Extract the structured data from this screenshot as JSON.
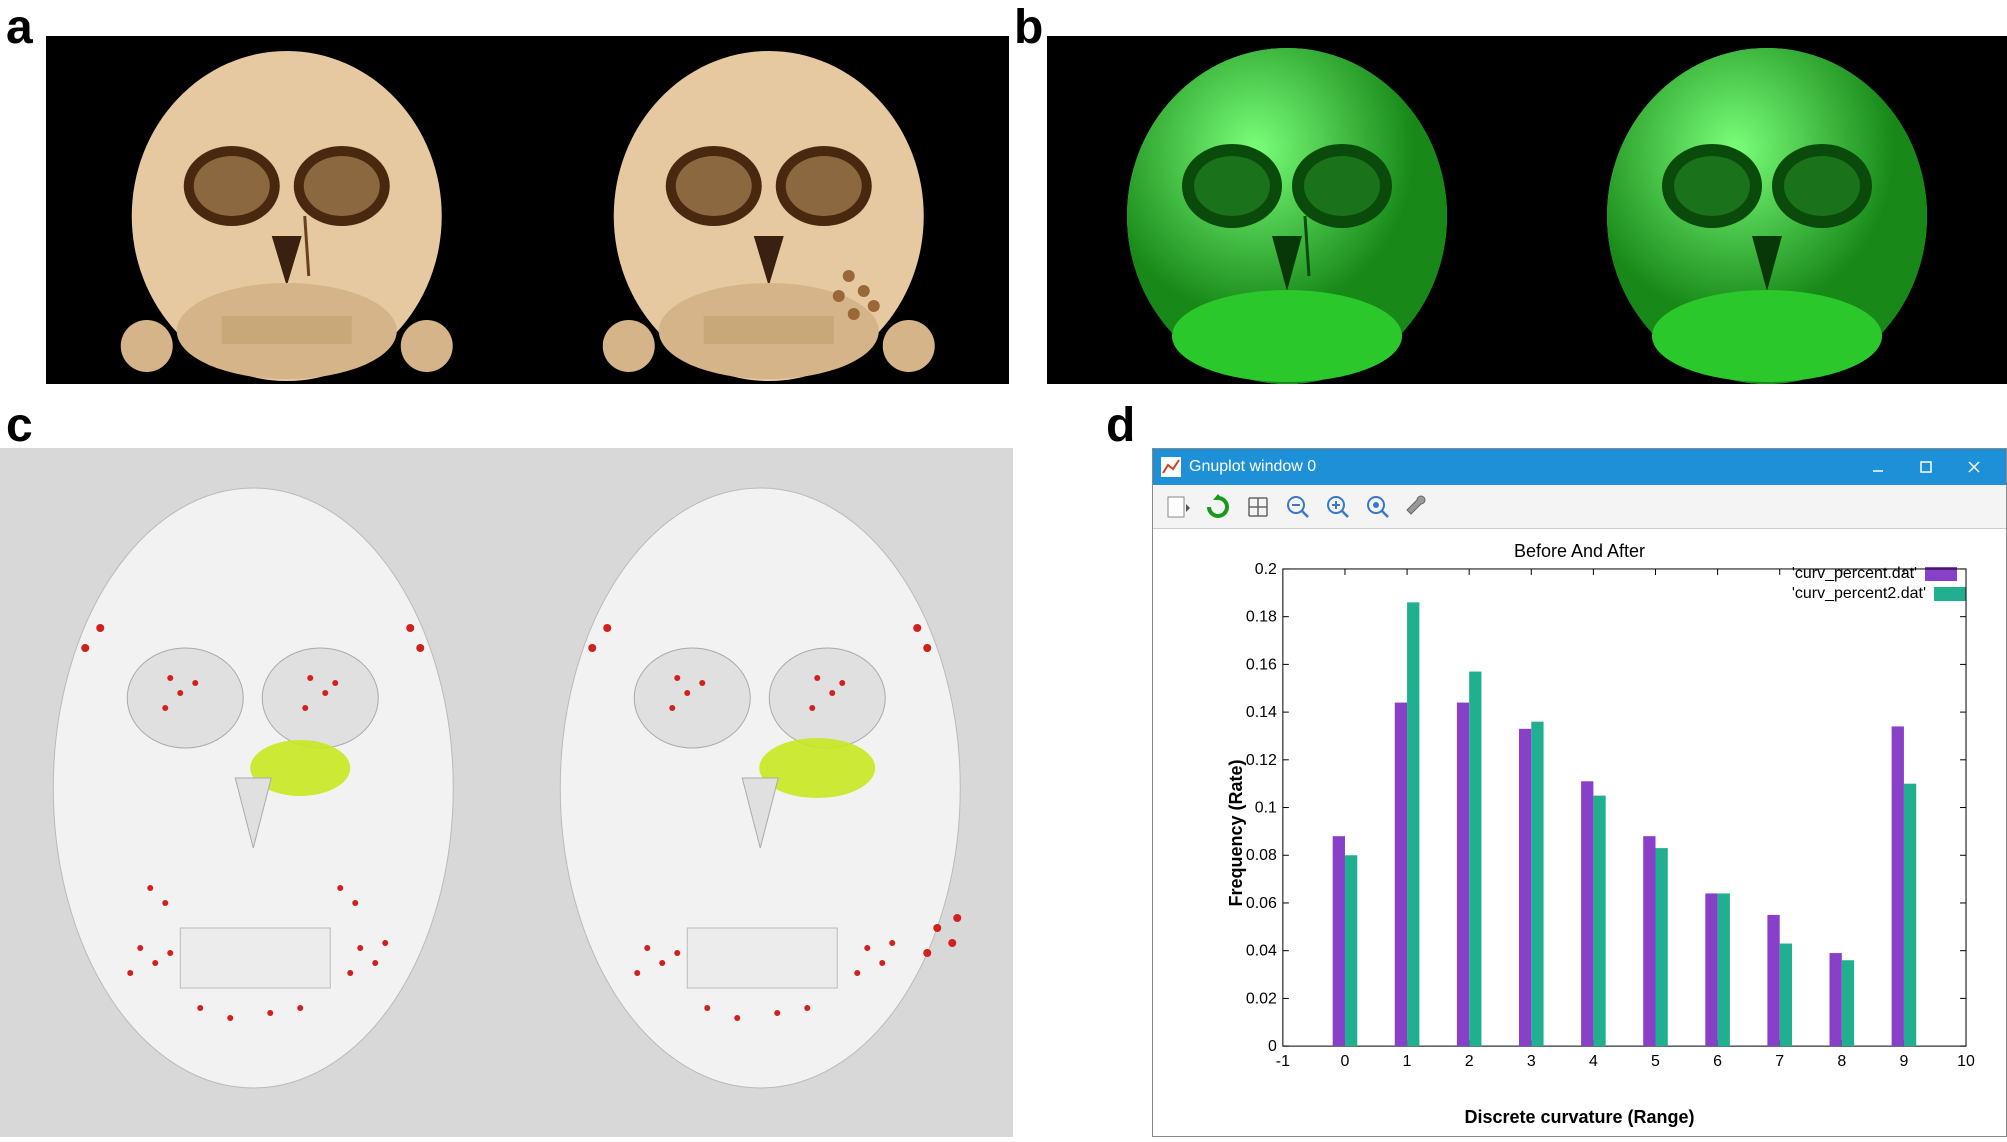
{
  "panel_labels": {
    "a": "a",
    "b": "b",
    "c": "c",
    "d": "d"
  },
  "panel_a": {
    "type": "ct-skull-render-pair",
    "background_color": "#000000",
    "skull_color": "#e6c9a0",
    "skull_shadow": "#b89260",
    "detail_color": "#a06040"
  },
  "panel_b": {
    "type": "surface-render-pair",
    "background_color": "#000000",
    "skull_color": "#3de03d",
    "skull_shadow": "#188818"
  },
  "panel_c": {
    "type": "curvature-map-pair",
    "background_color": "#d8d8d8",
    "skull_base": "#eaeaea",
    "curvature_dots": "#d02020",
    "roi_color": "#c8e820"
  },
  "gnuplot": {
    "window_title": "Gnuplot window 0",
    "titlebar_color": "#1e90d8",
    "toolbar_icons": [
      "file-dropdown",
      "refresh",
      "grid",
      "zoom-out",
      "zoom-in",
      "zoom-fit",
      "settings-wrench"
    ],
    "chart": {
      "type": "bar",
      "title": "Before And After",
      "xlabel": "Discrete curvature (Range)",
      "ylabel": "Frequency (Rate)",
      "xlim": [
        -1,
        10
      ],
      "ylim": [
        0,
        0.2
      ],
      "ytick_step": 0.02,
      "yticks": [
        0,
        0.02,
        0.04,
        0.06,
        0.08,
        0.1,
        0.12,
        0.14,
        0.16,
        0.18,
        0.2
      ],
      "categories": [
        0,
        1,
        2,
        3,
        4,
        5,
        6,
        7,
        8,
        9
      ],
      "series": [
        {
          "name": "'curv_percent.dat'",
          "color": "#8840c8",
          "values": [
            0.088,
            0.144,
            0.144,
            0.133,
            0.111,
            0.088,
            0.064,
            0.055,
            0.039,
            0.134
          ]
        },
        {
          "name": "'curv_percent2.dat'",
          "color": "#20b090",
          "values": [
            0.08,
            0.186,
            0.157,
            0.136,
            0.105,
            0.083,
            0.064,
            0.043,
            0.036,
            0.11
          ]
        }
      ],
      "bar_width": 0.36,
      "background_color": "#ffffff",
      "axis_color": "#000000",
      "tick_fontsize": 16,
      "label_fontsize": 18,
      "title_fontsize": 18,
      "legend_fontsize": 16
    }
  }
}
